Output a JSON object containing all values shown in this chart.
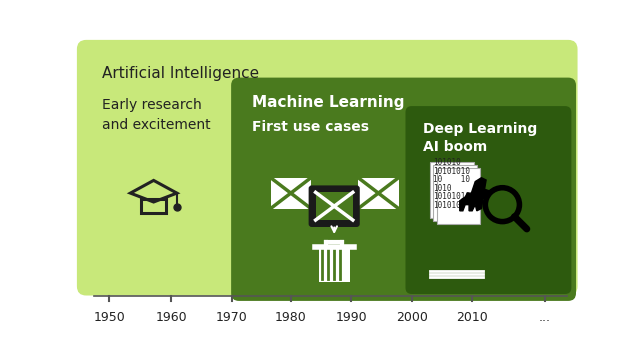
{
  "bg_color": "#ffffff",
  "ai_box_color": "#c8e87a",
  "ml_box_color": "#4a7a1e",
  "dl_box_color": "#2d5a0e",
  "ai_label": "Artificial Intelligence",
  "ai_sublabel": "Early research\nand excitement",
  "ml_label": "Machine Learning",
  "ml_sublabel": "First use cases",
  "dl_label": "Deep Learning",
  "dl_sublabel": "AI boom",
  "timeline_years": [
    "1950",
    "1960",
    "1970",
    "1980",
    "1990",
    "2000",
    "2010",
    "..."
  ],
  "text_color_dark": "#222222",
  "text_color_light": "#ffffff"
}
